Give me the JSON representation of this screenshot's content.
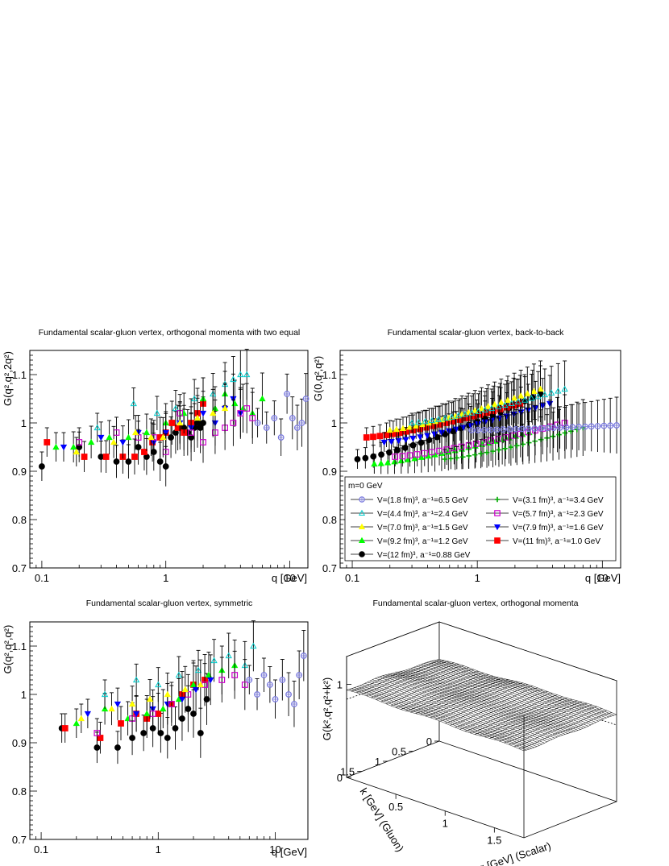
{
  "chart_data": [
    {
      "type": "scatter",
      "title": "Fundamental scalar-gluon vertex, orthogonal momenta with two equal",
      "ylabel": "G(q²,q²,2q²)",
      "xlabel": "q [GeV]",
      "xscale": "log",
      "xlim": [
        0.08,
        14
      ],
      "ylim": [
        0.7,
        1.15
      ],
      "x_ticks": [
        "0.1",
        "1",
        "10"
      ],
      "y_ticks": [
        "0.7",
        "0.8",
        "0.9",
        "1",
        "1.1"
      ],
      "series": [
        {
          "marker": "circle",
          "color": "#000000",
          "x": [
            0.1,
            0.2,
            0.3,
            0.4,
            0.5,
            0.6,
            0.7,
            0.8,
            0.9,
            1.0,
            1.1,
            1.2,
            1.3,
            1.4,
            1.5,
            1.6,
            1.7,
            1.8,
            1.9,
            2.0
          ],
          "y": [
            0.91,
            0.95,
            0.93,
            0.92,
            0.92,
            0.95,
            0.93,
            0.94,
            0.92,
            0.91,
            0.97,
            0.98,
            0.99,
            0.99,
            0.98,
            0.97,
            0.99,
            1.0,
            0.99,
            1.0
          ]
        },
        {
          "marker": "square",
          "color": "#ff0000",
          "x": [
            0.11,
            0.22,
            0.33,
            0.45,
            0.56,
            0.67,
            0.78,
            0.9,
            1.0,
            1.12,
            1.25,
            1.4,
            1.6,
            1.8,
            2.0
          ],
          "y": [
            0.96,
            0.93,
            0.93,
            0.93,
            0.93,
            0.94,
            0.96,
            0.97,
            0.98,
            1.0,
            0.99,
            0.98,
            1.0,
            1.02,
            1.04
          ]
        },
        {
          "marker": "triangle-up",
          "color": "#00ff00",
          "x": [
            0.13,
            0.18,
            0.25,
            0.35,
            0.5,
            0.7,
            1.0,
            1.4,
            2.0,
            2.5,
            3.0,
            3.6,
            4.2,
            5.0,
            6.0
          ],
          "y": [
            0.95,
            0.95,
            0.96,
            0.97,
            0.97,
            0.98,
            1.0,
            1.02,
            1.05,
            1.03,
            1.06,
            1.04,
            1.03,
            1.02,
            1.05
          ]
        },
        {
          "marker": "triangle-down",
          "color": "#0000ff",
          "x": [
            0.15,
            0.3,
            0.45,
            0.6,
            0.8,
            1.0,
            1.3,
            1.6,
            2.0,
            2.5,
            3.0,
            3.5,
            4.0
          ],
          "y": [
            0.95,
            0.97,
            0.96,
            0.98,
            0.96,
            0.98,
            1.0,
            0.99,
            1.02,
            1.0,
            1.03,
            1.05,
            1.02
          ]
        },
        {
          "marker": "triangle-up-open",
          "color": "#00cccc",
          "x": [
            0.28,
            0.55,
            0.85,
            1.2,
            1.7,
            2.4,
            3.0,
            3.5,
            4.0,
            4.5
          ],
          "y": [
            0.99,
            1.04,
            1.02,
            1.03,
            1.05,
            1.06,
            1.08,
            1.09,
            1.1,
            1.1
          ]
        },
        {
          "marker": "square-open",
          "color": "#cc00cc",
          "x": [
            0.2,
            0.4,
            0.6,
            0.8,
            1.0,
            1.3,
            1.6,
            2.0,
            2.5,
            3.0,
            3.5,
            4.0,
            4.5,
            5.0
          ],
          "y": [
            0.96,
            0.98,
            0.97,
            0.97,
            0.94,
            1.02,
            0.98,
            0.96,
            0.98,
            0.99,
            1.0,
            1.02,
            1.03,
            1.01
          ]
        },
        {
          "marker": "triangle-up",
          "color": "#ffff00",
          "x": [
            0.19,
            0.38,
            0.57,
            0.76,
            0.95,
            1.3,
            1.8,
            2.4,
            3.0
          ],
          "y": [
            0.94,
            0.96,
            0.98,
            0.97,
            0.97,
            1.0,
            1.01,
            1.02,
            1.03
          ]
        },
        {
          "marker": "circle-open-cross",
          "color": "#7777dd",
          "x": [
            5.5,
            6.5,
            7.5,
            8.5,
            9.5,
            10.5,
            11.5,
            12.5,
            13.5
          ],
          "y": [
            1.0,
            0.99,
            1.01,
            0.97,
            1.06,
            1.01,
            0.99,
            1.0,
            1.05
          ]
        }
      ]
    },
    {
      "type": "line",
      "title": "Fundamental scalar-gluon vertex, back-to-back",
      "ylabel": "G(0,q²,q²)",
      "xlabel": "q [GeV]",
      "xscale": "log",
      "xlim": [
        0.08,
        14
      ],
      "ylim": [
        0.7,
        1.15
      ],
      "x_ticks": [
        "0.1",
        "1",
        "10"
      ],
      "y_ticks": [
        "0.7",
        "0.8",
        "0.9",
        "1",
        "1.1"
      ],
      "legend": {
        "placement": "bottom-right",
        "header": "m=0 GeV",
        "entries": [
          {
            "label": "V=(1.8 fm)³, a⁻¹=6.5 GeV",
            "marker": "circle-open-cross",
            "color": "#7777dd"
          },
          {
            "label": "V=(3.1 fm)³, a⁻¹=3.4 GeV",
            "marker": "cross",
            "color": "#00aa00"
          },
          {
            "label": "V=(4.4 fm)³, a⁻¹=2.4 GeV",
            "marker": "triangle-up-open",
            "color": "#00cccc"
          },
          {
            "label": "V=(5.7 fm)³, a⁻¹=2.3 GeV",
            "marker": "square-open",
            "color": "#cc00cc"
          },
          {
            "label": "V=(7.0 fm)³, a⁻¹=1.5 GeV",
            "marker": "triangle-up",
            "color": "#ffff00"
          },
          {
            "label": "V=(7.9 fm)³, a⁻¹=1.6 GeV",
            "marker": "triangle-down",
            "color": "#0000ff"
          },
          {
            "label": "V=(9.2 fm)³, a⁻¹=1.2 GeV",
            "marker": "triangle-up",
            "color": "#00ff00"
          },
          {
            "label": "V=(11 fm)³, a⁻¹=1.0 GeV",
            "marker": "square",
            "color": "#ff0000"
          },
          {
            "label": "V=(12 fm)³, a⁻¹=0.88 GeV",
            "marker": "circle",
            "color": "#000000"
          }
        ]
      },
      "series": [
        {
          "marker": "circle",
          "color": "#000000",
          "x_range": [
            0.11,
            3.2
          ],
          "y_range": [
            0.925,
            1.06
          ]
        },
        {
          "marker": "square",
          "color": "#ff0000",
          "x_range": [
            0.13,
            2.2
          ],
          "y_range": [
            0.97,
            1.04
          ]
        },
        {
          "marker": "triangle-up",
          "color": "#00ff00",
          "x_range": [
            0.15,
            2.6
          ],
          "y_range": [
            0.915,
            0.98
          ]
        },
        {
          "marker": "triangle-down",
          "color": "#0000ff",
          "x_range": [
            0.18,
            3.8
          ],
          "y_range": [
            0.96,
            1.04
          ]
        },
        {
          "marker": "triangle-up",
          "color": "#ffff00",
          "x_range": [
            0.2,
            3.2
          ],
          "y_range": [
            0.985,
            1.07
          ]
        },
        {
          "marker": "square-open",
          "color": "#cc00cc",
          "x_range": [
            0.22,
            5.0
          ],
          "y_range": [
            0.93,
            1.0
          ]
        },
        {
          "marker": "triangle-up-open",
          "color": "#00cccc",
          "x_range": [
            0.3,
            5.0
          ],
          "y_range": [
            1.0,
            1.07
          ]
        },
        {
          "marker": "cross",
          "color": "#00aa00",
          "x_range": [
            0.55,
            7.0
          ],
          "y_range": [
            0.925,
            0.99
          ]
        },
        {
          "marker": "circle-open-cross",
          "color": "#7777dd",
          "x_range": [
            0.9,
            13
          ],
          "y_range": [
            0.985,
            0.995
          ]
        }
      ]
    },
    {
      "type": "scatter",
      "title": "Fundamental scalar-gluon vertex, symmetric",
      "ylabel": "G(q²,q²,q²)",
      "xlabel": "q [GeV]",
      "xscale": "log",
      "xlim": [
        0.08,
        19
      ],
      "ylim": [
        0.7,
        1.15
      ],
      "x_ticks": [
        "0.1",
        "1",
        "10"
      ],
      "y_ticks": [
        "0.7",
        "0.8",
        "0.9",
        "1",
        "1.1"
      ],
      "series": [
        {
          "marker": "circle",
          "color": "#000000",
          "x": [
            0.15,
            0.3,
            0.45,
            0.6,
            0.75,
            0.9,
            1.05,
            1.2,
            1.4,
            1.6,
            1.8,
            2.0,
            2.3,
            2.6
          ],
          "y": [
            0.93,
            0.89,
            0.89,
            0.91,
            0.92,
            0.93,
            0.92,
            0.91,
            0.93,
            0.95,
            0.97,
            0.96,
            0.92,
            0.99
          ]
        },
        {
          "marker": "square",
          "color": "#ff0000",
          "x": [
            0.16,
            0.32,
            0.48,
            0.65,
            0.8,
            1.0,
            1.3,
            1.6,
            2.0,
            2.5
          ],
          "y": [
            0.93,
            0.91,
            0.94,
            0.96,
            0.95,
            0.96,
            0.98,
            1.0,
            1.02,
            1.03
          ]
        },
        {
          "marker": "triangle-up",
          "color": "#00ff00",
          "x": [
            0.2,
            0.35,
            0.55,
            0.8,
            1.1,
            1.5,
            2.0,
            2.7,
            3.5,
            4.5
          ],
          "y": [
            0.94,
            0.97,
            0.95,
            0.96,
            0.97,
            0.99,
            1.02,
            1.04,
            1.05,
            1.06
          ]
        },
        {
          "marker": "triangle-down",
          "color": "#0000ff",
          "x": [
            0.25,
            0.45,
            0.65,
            0.9,
            1.2,
            1.6,
            2.1,
            2.8
          ],
          "y": [
            0.96,
            0.98,
            0.96,
            0.97,
            0.98,
            0.99,
            1.01,
            1.03
          ]
        },
        {
          "marker": "triangle-up-open",
          "color": "#00cccc",
          "x": [
            0.35,
            0.65,
            1.0,
            1.5,
            2.2,
            3.0,
            4.0,
            5.5,
            6.5
          ],
          "y": [
            1.0,
            1.03,
            1.02,
            1.04,
            1.05,
            1.07,
            1.08,
            1.06,
            1.1
          ]
        },
        {
          "marker": "square-open",
          "color": "#cc00cc",
          "x": [
            0.3,
            0.6,
            0.9,
            1.3,
            1.8,
            2.5,
            3.5,
            4.5,
            5.5
          ],
          "y": [
            0.92,
            0.95,
            0.96,
            0.98,
            1.0,
            1.02,
            1.03,
            1.04,
            1.02
          ]
        },
        {
          "marker": "triangle-up",
          "color": "#ffff00",
          "x": [
            0.22,
            0.4,
            0.6,
            0.85,
            1.2,
            1.7,
            2.3
          ],
          "y": [
            0.95,
            0.97,
            0.98,
            0.99,
            1.0,
            1.01,
            1.02
          ]
        },
        {
          "marker": "circle-open-cross",
          "color": "#7777dd",
          "x": [
            6.0,
            7.0,
            8.0,
            9.0,
            10.0,
            11.5,
            13.0,
            14.5,
            16.0,
            17.5
          ],
          "y": [
            1.03,
            1.0,
            1.04,
            1.02,
            0.99,
            1.03,
            1.0,
            0.98,
            1.04,
            1.08
          ]
        }
      ]
    },
    {
      "type": "surface",
      "title": "Fundamental scalar-gluon vertex, orthogonal momenta",
      "zlabel": "G(k²,q²,q²+k²)",
      "xlabel": "q [GeV] (Scalar)",
      "ylabel": "k [GeV] (Gluon)",
      "xlim": [
        0,
        1.8
      ],
      "ylim": [
        0,
        1.8
      ],
      "zlim": [
        0,
        1.3
      ],
      "x_ticks": [
        "0.5",
        "1",
        "1.5"
      ],
      "y_ticks": [
        "0",
        "0.5",
        "1",
        "1.5"
      ],
      "z_ticks": [
        "0",
        "1"
      ],
      "surface_value_range": [
        0.85,
        1.0
      ]
    }
  ]
}
